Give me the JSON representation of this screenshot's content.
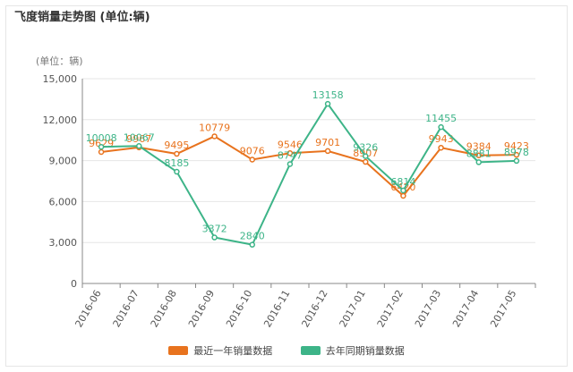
{
  "title": "飞度销量走势图 (单位:辆)",
  "colors": {
    "recent": "#e8731e",
    "last_year": "#3db488",
    "grid": "#e6e6e6",
    "axis": "#888888"
  },
  "chart_data": {
    "type": "line",
    "unit_label": "(单位：辆)",
    "categories": [
      "2016-06",
      "2016-07",
      "2016-08",
      "2016-09",
      "2016-10",
      "2016-11",
      "2016-12",
      "2017-01",
      "2017-02",
      "2017-03",
      "2017-04",
      "2017-05"
    ],
    "ylim": [
      0,
      15000
    ],
    "yticks": [
      "0",
      "3,000",
      "6,000",
      "9,000",
      "12,000",
      "15,000"
    ],
    "grid": true,
    "legend_position": "bottom",
    "series": [
      {
        "name": "最近一年销量数据",
        "values": [
          9629,
          9967,
          9495,
          10779,
          9076,
          9546,
          9701,
          8907,
          6420,
          9943,
          9384,
          9423
        ]
      },
      {
        "name": "去年同期销量数据",
        "values": [
          10008,
          10067,
          8185,
          3372,
          2840,
          8747,
          13158,
          9326,
          6814,
          11455,
          8881,
          8978
        ]
      }
    ]
  }
}
